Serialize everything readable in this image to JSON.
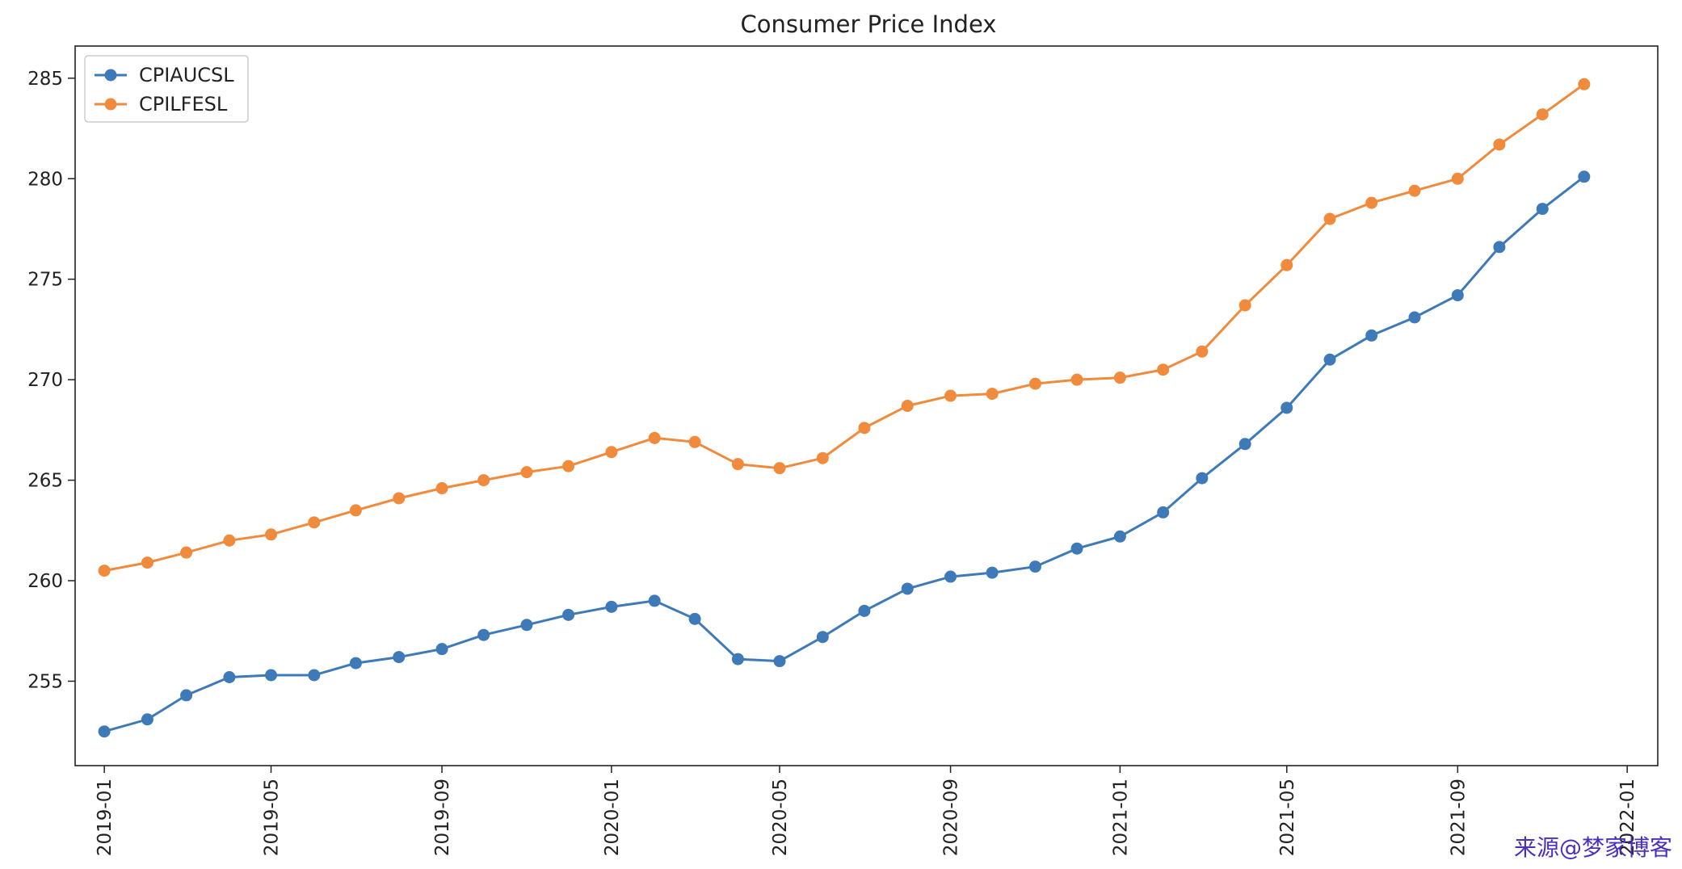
{
  "chart_data": {
    "type": "line",
    "title": "Consumer Price Index",
    "xlabel": "",
    "ylabel": "",
    "x": [
      "2019-01",
      "2019-02",
      "2019-03",
      "2019-04",
      "2019-05",
      "2019-06",
      "2019-07",
      "2019-08",
      "2019-09",
      "2019-10",
      "2019-11",
      "2019-12",
      "2020-01",
      "2020-02",
      "2020-03",
      "2020-04",
      "2020-05",
      "2020-06",
      "2020-07",
      "2020-08",
      "2020-09",
      "2020-10",
      "2020-11",
      "2020-12",
      "2021-01",
      "2021-02",
      "2021-03",
      "2021-04",
      "2021-05",
      "2021-06",
      "2021-07",
      "2021-08",
      "2021-09",
      "2021-10",
      "2021-11",
      "2021-12"
    ],
    "x_ticks": [
      "2019-01",
      "2019-05",
      "2019-09",
      "2020-01",
      "2020-05",
      "2020-09",
      "2021-01",
      "2021-05",
      "2021-09",
      "2022-01"
    ],
    "y_ticks": [
      255,
      260,
      265,
      270,
      275,
      280,
      285
    ],
    "ylim": [
      250.8,
      286.6
    ],
    "xlim": [
      "2018-12-11",
      "2022-01-23"
    ],
    "grid": false,
    "legend_position": "top-left",
    "series": [
      {
        "name": "CPIAUCSL",
        "color": "#3e7ab8",
        "marker": "circle",
        "values": [
          252.5,
          253.1,
          254.3,
          255.2,
          255.3,
          255.3,
          255.9,
          256.2,
          256.6,
          257.3,
          257.8,
          258.3,
          258.7,
          259.0,
          258.1,
          256.1,
          256.0,
          257.2,
          258.5,
          259.6,
          260.2,
          260.4,
          260.7,
          261.6,
          262.2,
          263.4,
          265.1,
          266.8,
          268.6,
          271.0,
          272.2,
          273.1,
          274.2,
          276.6,
          278.5,
          280.1
        ]
      },
      {
        "name": "CPILFESL",
        "color": "#f08a3c",
        "marker": "circle",
        "values": [
          260.5,
          260.9,
          261.4,
          262.0,
          262.3,
          262.9,
          263.5,
          264.1,
          264.6,
          265.0,
          265.4,
          265.7,
          266.4,
          267.1,
          266.9,
          265.8,
          265.6,
          266.1,
          267.6,
          268.7,
          269.2,
          269.3,
          269.8,
          270.0,
          270.1,
          270.5,
          271.4,
          273.7,
          275.7,
          278.0,
          278.8,
          279.4,
          280.0,
          281.7,
          283.2,
          284.7
        ]
      }
    ]
  },
  "watermark": "来源@梦家博客"
}
